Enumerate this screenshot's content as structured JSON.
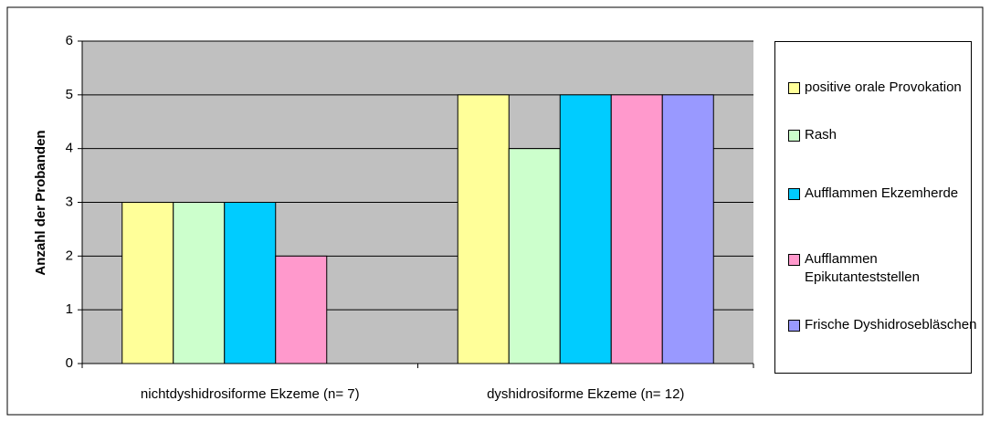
{
  "chart_data": {
    "type": "bar",
    "y_label": "Anzahl der Probanden",
    "categories": [
      "nichtdyshidrosiforme Ekzeme (n= 7)",
      "dyshidrosiforme Ekzeme (n= 12)"
    ],
    "series": [
      {
        "name": "positive orale Provokation",
        "color": "#ffff99",
        "values": [
          3,
          5
        ]
      },
      {
        "name": "Rash",
        "color": "#ccffcc",
        "values": [
          3,
          4
        ]
      },
      {
        "name": "Aufflammen Ekzemherde",
        "color": "#00ccff",
        "values": [
          3,
          5
        ]
      },
      {
        "name": "Aufflammen Epikutanteststellen",
        "color": "#ff99cc",
        "values": [
          2,
          5
        ]
      },
      {
        "name": "Frische Dyshidrosebläschen",
        "color": "#9999ff",
        "values": [
          0,
          5
        ]
      }
    ],
    "ylim": [
      0,
      6
    ],
    "yticks": [
      0,
      1,
      2,
      3,
      4,
      5,
      6
    ],
    "grid": true,
    "plot_background": "#c0c0c0",
    "legend": "right"
  }
}
